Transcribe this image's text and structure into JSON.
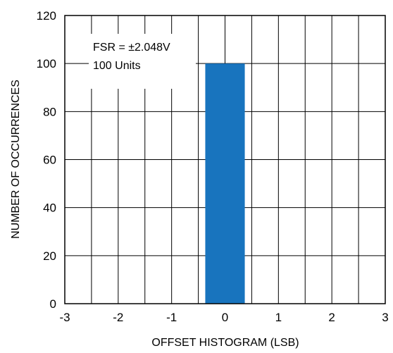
{
  "chart_data": {
    "type": "bar",
    "categories": [
      "0"
    ],
    "series": [
      {
        "values": [
          100
        ],
        "color": "#1874be"
      }
    ],
    "bar_span": [
      -0.37,
      0.37
    ],
    "title": "",
    "xlabel": "OFFSET HISTOGRAM (LSB)",
    "ylabel": "NUMBER OF OCCURRENCES",
    "xlim": [
      -3,
      3
    ],
    "ylim": [
      0,
      120
    ],
    "x_ticks": [
      "-3",
      "-2",
      "-1",
      "0",
      "1",
      "2",
      "3"
    ],
    "y_ticks": [
      "0",
      "20",
      "40",
      "60",
      "80",
      "100",
      "120"
    ],
    "x_minor_step": 0.5,
    "y_step": 20,
    "grid": true,
    "annotations": [
      "FSR = ±2.048V",
      "100 Units"
    ]
  }
}
